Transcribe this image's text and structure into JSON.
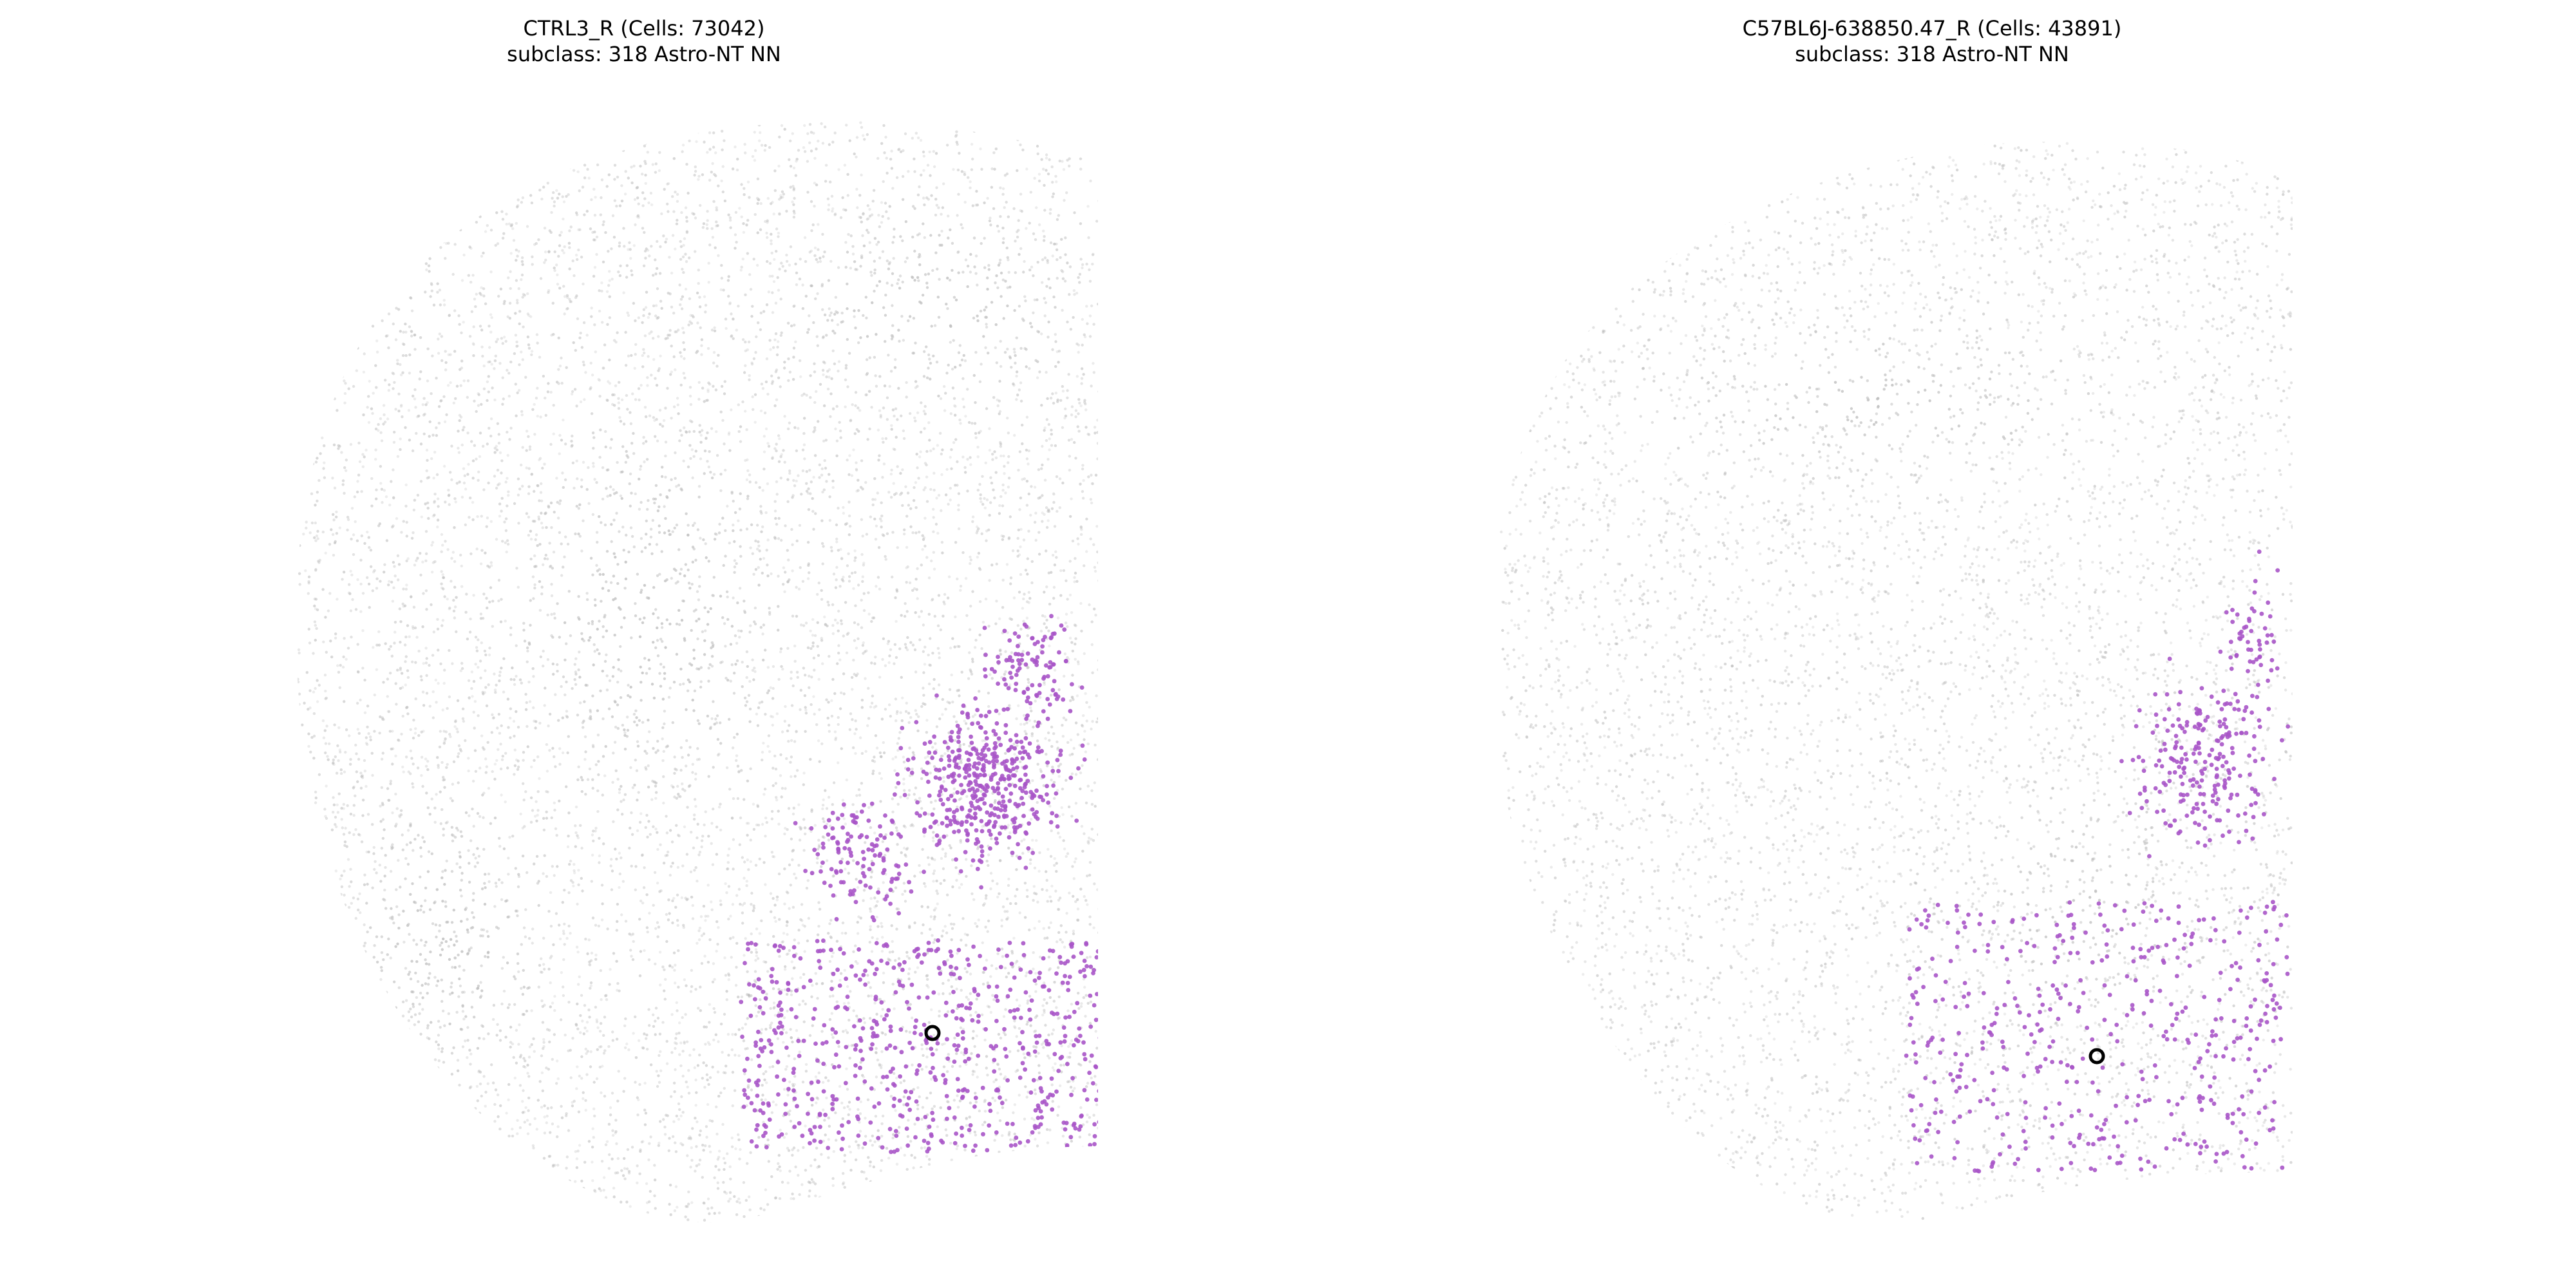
{
  "chart_data": [
    {
      "type": "scatter",
      "title": "CTRL3_R (Cells: 73042)",
      "subtitle": "subclass: 318 Astro-NT NN",
      "grid": false,
      "axes_visible": false,
      "colors": {
        "background_cells": "#bdbdbd",
        "highlighted_cells": "#a855c8",
        "marker": "#000000"
      },
      "series": [
        {
          "name": "",
          "role": "all cells",
          "color": "#bdbdbd",
          "count_shown": 73042
        },
        {
          "name": "",
          "role": "318 Astro-NT NN",
          "color": "#a855c8"
        }
      ],
      "highlight_marker": {
        "shape": "ring",
        "color": "#000000"
      }
    },
    {
      "type": "scatter",
      "title": "C57BL6J-638850.47_R (Cells: 43891)",
      "subtitle": "subclass: 318 Astro-NT NN",
      "grid": false,
      "axes_visible": false,
      "colors": {
        "background_cells": "#bdbdbd",
        "highlighted_cells": "#a855c8",
        "marker": "#000000"
      },
      "series": [
        {
          "name": "",
          "role": "all cells",
          "color": "#bdbdbd",
          "count_shown": 43891
        },
        {
          "name": "",
          "role": "318 Astro-NT NN",
          "color": "#a855c8"
        }
      ],
      "highlight_marker": {
        "shape": "ring",
        "color": "#000000"
      }
    }
  ]
}
